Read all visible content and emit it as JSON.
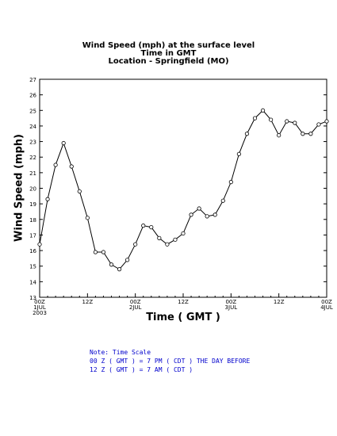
{
  "chart_data": {
    "type": "line",
    "title_lines": [
      "Wind Speed (mph) at the surface level",
      "Time in GMT",
      "Location - Springfield (MO)"
    ],
    "xlabel": "Time ( GMT )",
    "ylabel": "Wind Speed (mph)",
    "ylim": [
      13,
      27
    ],
    "yticks": [
      13,
      14,
      15,
      16,
      17,
      18,
      19,
      20,
      21,
      22,
      23,
      24,
      25,
      26,
      27
    ],
    "xlim_hours": [
      0,
      72
    ],
    "xticks": [
      {
        "hour": 0,
        "lines": [
          "00Z",
          "1JUL",
          "2003"
        ]
      },
      {
        "hour": 12,
        "lines": [
          "12Z"
        ]
      },
      {
        "hour": 24,
        "lines": [
          "00Z",
          "2JUL"
        ]
      },
      {
        "hour": 36,
        "lines": [
          "12Z"
        ]
      },
      {
        "hour": 48,
        "lines": [
          "00Z",
          "3JUL"
        ]
      },
      {
        "hour": 60,
        "lines": [
          "12Z"
        ]
      },
      {
        "hour": 72,
        "lines": [
          "00Z",
          "4JUL"
        ]
      }
    ],
    "x": [
      0,
      2,
      4,
      6,
      8,
      10,
      12,
      14,
      16,
      18,
      20,
      22,
      24,
      26,
      28,
      30,
      32,
      34,
      36,
      38,
      40,
      42,
      44,
      46,
      48,
      50,
      52,
      54,
      56,
      58,
      60,
      62,
      64,
      66,
      68,
      70,
      72
    ],
    "values": [
      16.4,
      19.3,
      21.5,
      22.9,
      21.4,
      19.8,
      18.1,
      15.9,
      15.9,
      15.1,
      14.8,
      15.4,
      16.4,
      17.6,
      17.5,
      16.8,
      16.4,
      16.7,
      17.1,
      18.3,
      18.7,
      18.2,
      18.3,
      19.2,
      20.4,
      22.2,
      23.5,
      24.5,
      25.0,
      24.4,
      23.4,
      24.3,
      24.2,
      23.5,
      23.5,
      24.1,
      24.3
    ],
    "grid": false,
    "legend": "none"
  },
  "notes": {
    "line1": "Note: Time Scale",
    "line2": "00 Z ( GMT ) = 7 PM ( CDT ) THE DAY BEFORE",
    "line3": "12 Z ( GMT ) = 7 AM ( CDT )"
  }
}
